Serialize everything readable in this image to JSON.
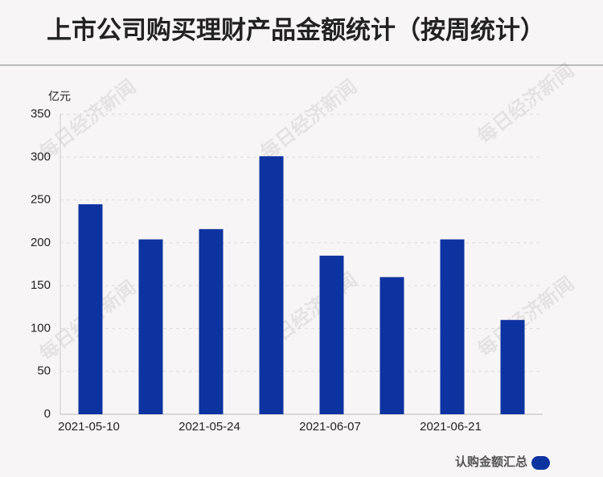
{
  "chart_data": {
    "type": "bar",
    "title": "上市公司购买理财产品金额统计（按周统计）",
    "y_label": "亿元",
    "watermark": "每日经济新闻",
    "categories": [
      "2021-05-10",
      null,
      "2021-05-24",
      null,
      "2021-06-07",
      null,
      "2021-06-21",
      null
    ],
    "series": [
      {
        "name": "认购金额汇总",
        "color": "#0d33a0",
        "values": [
          245,
          204,
          216,
          301,
          185,
          160,
          204,
          110
        ]
      }
    ],
    "ylim": [
      0,
      350
    ],
    "yticks": [
      0,
      50,
      100,
      150,
      200,
      250,
      300,
      350
    ],
    "grid": true,
    "legend": "bottom-right"
  }
}
